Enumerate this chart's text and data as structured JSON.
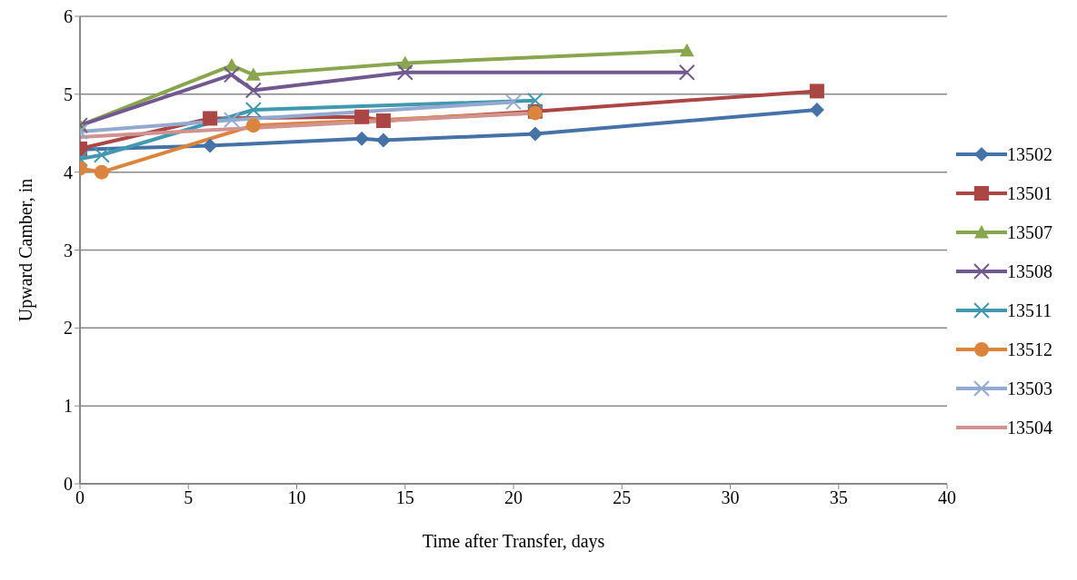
{
  "chart_data": {
    "type": "line",
    "xlabel": "Time after Transfer, days",
    "ylabel": "Upward Camber, in",
    "xlim": [
      0,
      40
    ],
    "xticks": [
      0,
      5,
      10,
      15,
      20,
      25,
      30,
      35,
      40
    ],
    "ylim": [
      0,
      6
    ],
    "yticks": [
      0,
      1,
      2,
      3,
      4,
      5,
      6
    ],
    "grid": "y",
    "legend": "right",
    "line_style": "solid",
    "series": [
      {
        "name": "13502",
        "color": "#4572a7",
        "marker": "diamond",
        "x": [
          0,
          6,
          13,
          14,
          21,
          34
        ],
        "values": [
          4.29,
          4.34,
          4.43,
          4.41,
          4.49,
          4.8
        ]
      },
      {
        "name": "13501",
        "color": "#aa4643",
        "marker": "square",
        "x": [
          0,
          6,
          13,
          14,
          21,
          34
        ],
        "values": [
          4.3,
          4.69,
          4.71,
          4.66,
          4.78,
          5.04
        ]
      },
      {
        "name": "13507",
        "color": "#89a54e",
        "marker": "triangle",
        "x": [
          0,
          7,
          8,
          15,
          28
        ],
        "values": [
          4.6,
          5.37,
          5.25,
          5.4,
          5.56
        ]
      },
      {
        "name": "13508",
        "color": "#71588f",
        "marker": "cross",
        "x": [
          0,
          7,
          8,
          15,
          28
        ],
        "values": [
          4.6,
          5.25,
          5.05,
          5.28,
          5.28
        ]
      },
      {
        "name": "13511",
        "color": "#4198af",
        "marker": "cross",
        "x": [
          0,
          1,
          8,
          21
        ],
        "values": [
          4.17,
          4.22,
          4.8,
          4.92
        ]
      },
      {
        "name": "13512",
        "color": "#db843d",
        "marker": "circle",
        "x": [
          0,
          1,
          8,
          21
        ],
        "values": [
          4.05,
          4.0,
          4.6,
          4.76
        ]
      },
      {
        "name": "13503",
        "color": "#93a9cf",
        "marker": "cross",
        "x": [
          0,
          7,
          20
        ],
        "values": [
          4.52,
          4.67,
          4.9
        ]
      },
      {
        "name": "13504",
        "color": "#d19392",
        "marker": "none",
        "x": [
          0,
          21
        ],
        "values": [
          4.45,
          4.76
        ]
      }
    ]
  }
}
